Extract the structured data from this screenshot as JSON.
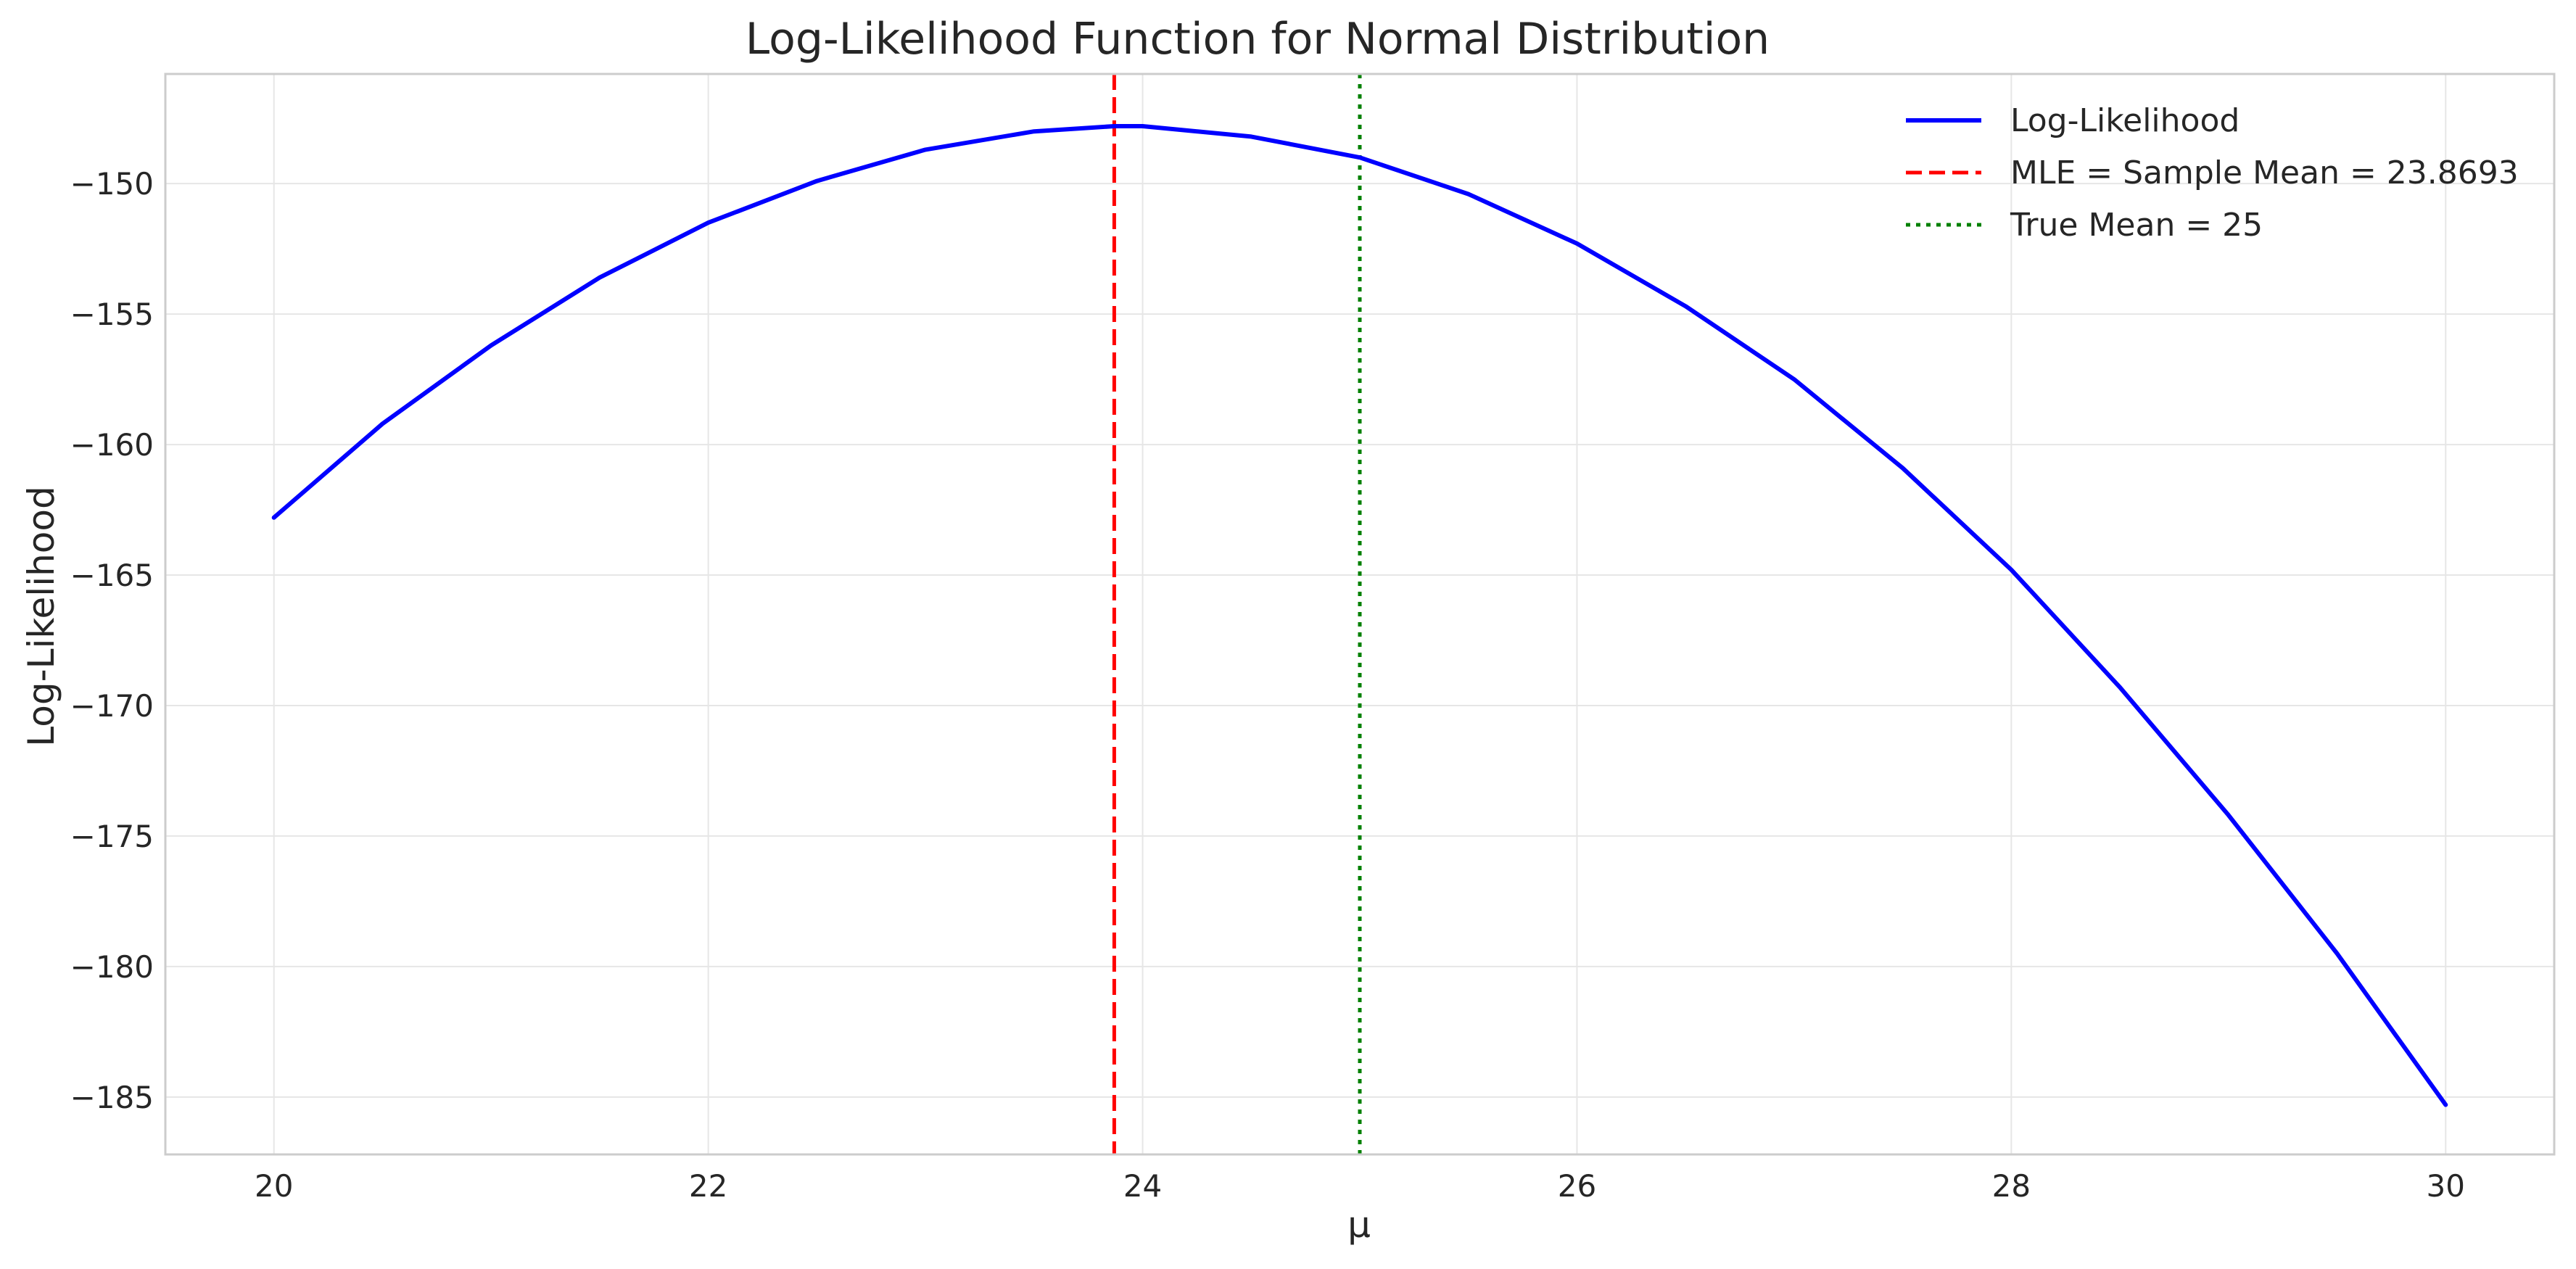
{
  "chart_data": {
    "type": "line",
    "title": "Log-Likelihood Function for Normal Distribution",
    "xlabel": "μ",
    "ylabel": "Log-Likelihood",
    "xlim": [
      19.5,
      30.5
    ],
    "ylim": [
      -187.2,
      -145.8
    ],
    "xticks": [
      20,
      22,
      24,
      26,
      28,
      30
    ],
    "yticks": [
      -150,
      -155,
      -160,
      -165,
      -170,
      -175,
      -180,
      -185
    ],
    "xtick_labels": [
      "20",
      "22",
      "24",
      "26",
      "28",
      "30"
    ],
    "ytick_labels": [
      "−150",
      "−155",
      "−160",
      "−165",
      "−170",
      "−175",
      "−180",
      "−185"
    ],
    "grid": true,
    "legend_position": "top-right",
    "series": [
      {
        "name": "Log-Likelihood",
        "style": "solid",
        "color": "#0000ff",
        "x": [
          20,
          20.5,
          21,
          21.5,
          22,
          22.5,
          23,
          23.5,
          23.8693,
          24,
          24.5,
          25,
          25.5,
          26,
          26.5,
          27,
          27.5,
          28,
          28.5,
          29,
          29.5,
          30
        ],
        "y": [
          -162.8,
          -159.2,
          -156.2,
          -153.6,
          -151.5,
          -149.9,
          -148.7,
          -148.0,
          -147.8,
          -147.8,
          -148.2,
          -149.0,
          -150.4,
          -152.3,
          -154.7,
          -157.5,
          -160.9,
          -164.8,
          -169.3,
          -174.2,
          -179.5,
          -185.3
        ]
      }
    ],
    "reference_lines": [
      {
        "name": "MLE = Sample Mean = 23.8693",
        "x": 23.8693,
        "style": "dashed",
        "color": "#ff0000"
      },
      {
        "name": "True Mean = 25",
        "x": 25,
        "style": "dotted",
        "color": "#008000"
      }
    ],
    "colors": {
      "grid": "#e6e6e6",
      "frame": "#cccccc",
      "text": "#262626"
    }
  }
}
